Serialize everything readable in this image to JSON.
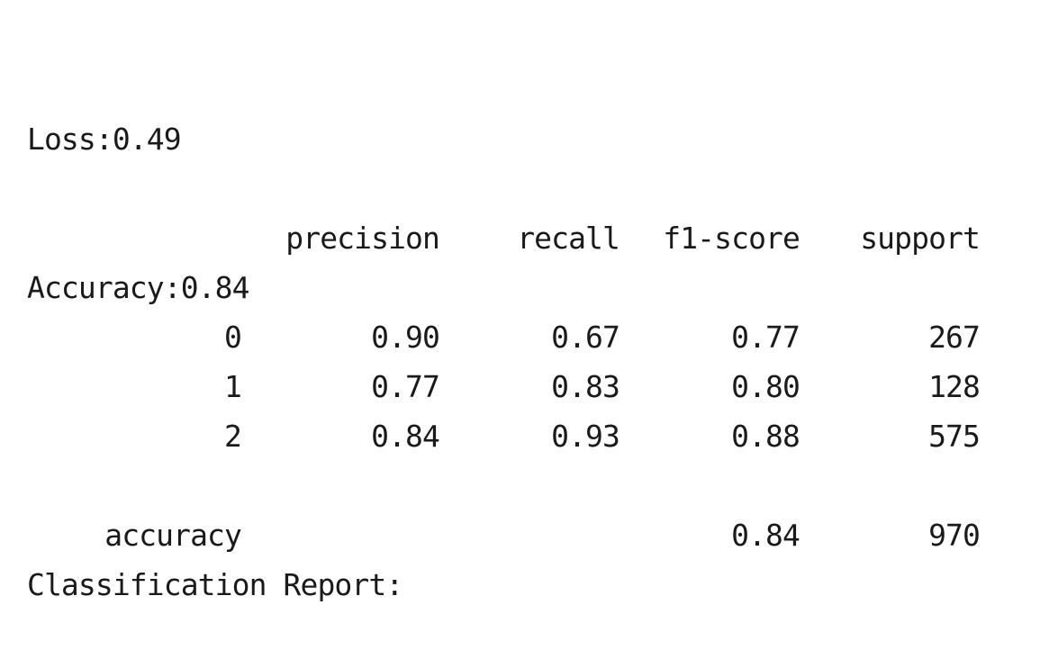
{
  "metrics": {
    "loss_line": "Loss:0.49",
    "accuracy_line": "Accuracy:0.84"
  },
  "report": {
    "title": "Classification Report:",
    "headers": {
      "precision": "precision",
      "recall": "recall",
      "f1": "f1-score",
      "support": "support"
    },
    "rows": [
      {
        "label": "0",
        "precision": "0.90",
        "recall": "0.67",
        "f1": "0.77",
        "support": "267"
      },
      {
        "label": "1",
        "precision": "0.77",
        "recall": "0.83",
        "f1": "0.80",
        "support": "128"
      },
      {
        "label": "2",
        "precision": "0.84",
        "recall": "0.93",
        "f1": "0.88",
        "support": "575"
      }
    ],
    "accuracy_row": {
      "label": "accuracy",
      "f1": "0.84",
      "support": "970"
    }
  }
}
